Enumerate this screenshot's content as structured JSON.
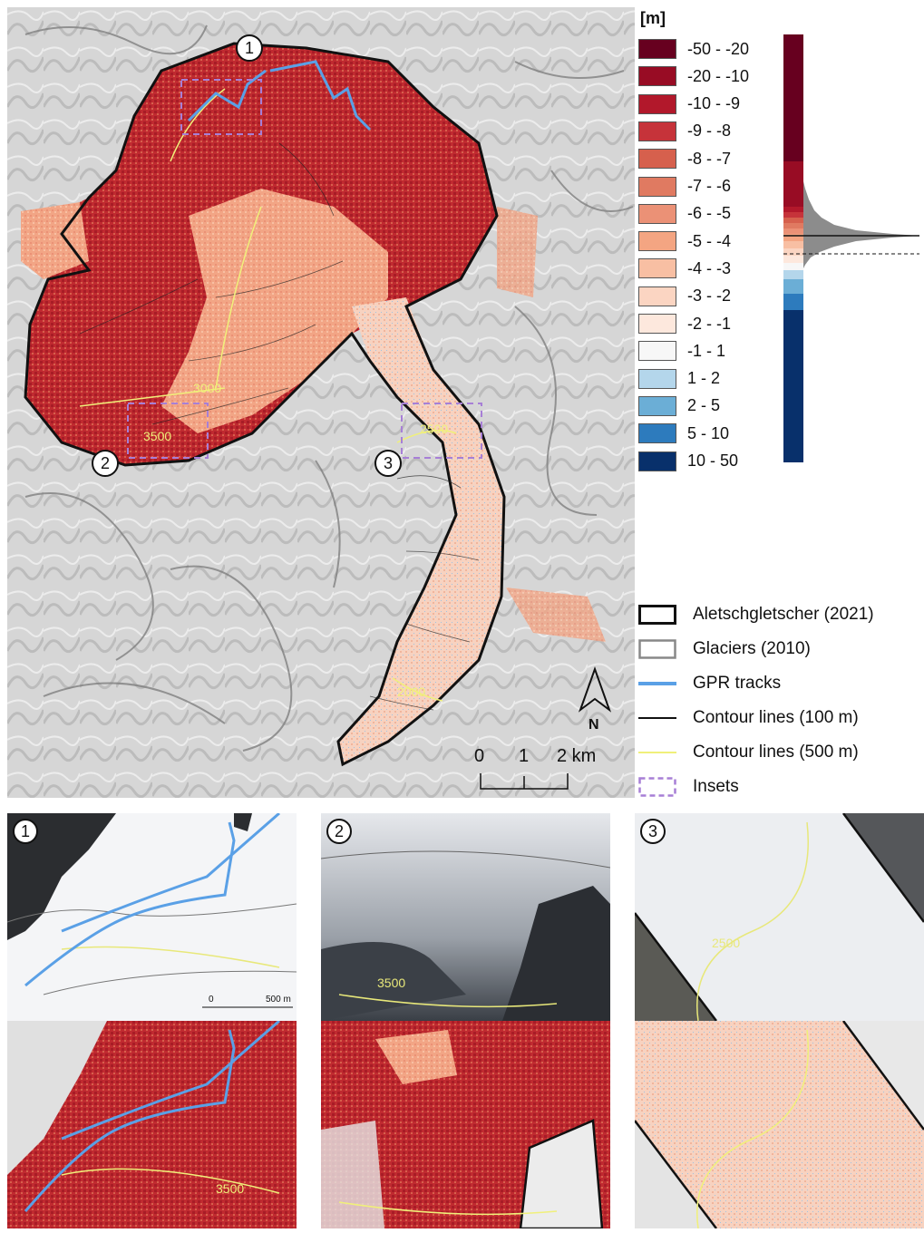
{
  "legend": {
    "unit": "[m]",
    "classes": [
      {
        "label": "-50 - -20",
        "color": "#67001f"
      },
      {
        "label": "-20 - -10",
        "color": "#980c24"
      },
      {
        "label": "-10 - -9",
        "color": "#b2182b"
      },
      {
        "label": "-9 - -8",
        "color": "#c6333a"
      },
      {
        "label": "-8 - -7",
        "color": "#d6604d"
      },
      {
        "label": "-7 - -6",
        "color": "#e07a61"
      },
      {
        "label": "-6 - -5",
        "color": "#eb9176"
      },
      {
        "label": "-5 - -4",
        "color": "#f4a582"
      },
      {
        "label": "-4 - -3",
        "color": "#f8bfa3"
      },
      {
        "label": "-3 - -2",
        "color": "#fbd5c2"
      },
      {
        "label": "-2 - -1",
        "color": "#fde8dd"
      },
      {
        "label": "-1 - 1",
        "color": "#f7f7f7"
      },
      {
        "label": "1 - 2",
        "color": "#b4d6eb"
      },
      {
        "label": "2 - 5",
        "color": "#6baed6"
      },
      {
        "label": "5 - 10",
        "color": "#2d7bbd"
      },
      {
        "label": "10 - 50",
        "color": "#08306b"
      }
    ],
    "symbols": [
      {
        "label": "Aletschgletscher (2021)",
        "icon": "outline-box-black"
      },
      {
        "label": "Glaciers (2010)",
        "icon": "outline-box-gray"
      },
      {
        "label": "GPR tracks",
        "icon": "line-blue",
        "color": "#5aa0e6"
      },
      {
        "label": "Contour lines (100 m)",
        "icon": "line-black"
      },
      {
        "label": "Contour lines (500 m)",
        "icon": "line-yellow",
        "color": "#f0f07a"
      },
      {
        "label": "Insets",
        "icon": "dashed-box-purple",
        "color": "#a77fd6"
      }
    ]
  },
  "map": {
    "callouts": [
      "1",
      "2",
      "3"
    ],
    "contour_labels": [
      "3000",
      "3500",
      "2500",
      "2000"
    ],
    "north_label": "N",
    "scale": {
      "ticks": [
        "0",
        "1",
        "2 km"
      ]
    }
  },
  "insets": [
    {
      "number": "1",
      "contour_label": "3500",
      "scale_ticks": [
        "0",
        "500 m"
      ]
    },
    {
      "number": "2",
      "contour_label": "3500"
    },
    {
      "number": "3",
      "contour_label": "2500"
    }
  ]
}
